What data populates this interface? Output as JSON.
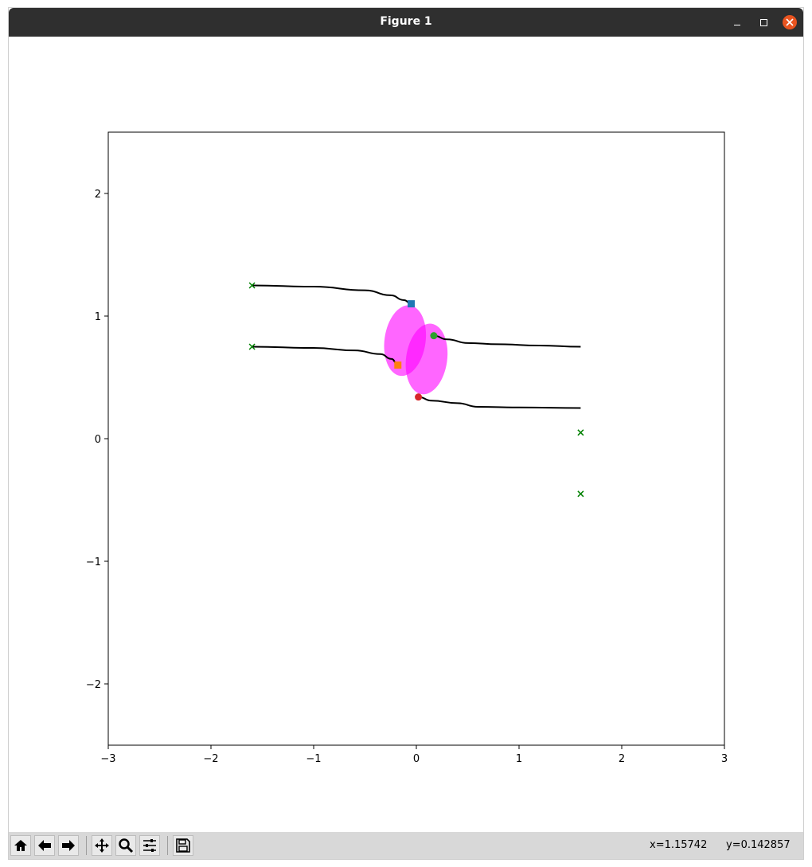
{
  "window": {
    "title": "Figure 1"
  },
  "status": {
    "x_readout": "x=1.15742",
    "y_readout": "y=0.142857"
  },
  "toolbar": {
    "buttons": [
      "home-icon",
      "back-arrow-icon",
      "forward-arrow-icon",
      "pan-icon",
      "zoom-icon",
      "configure-subplots-icon",
      "save-icon"
    ]
  },
  "colors": {
    "titlebar": "#2f2f2f",
    "close": "#e95420",
    "ellipse": "#ff00ff",
    "goal": "#008000",
    "path": "#000000"
  },
  "chart_data": {
    "type": "scatter",
    "title": "",
    "xlabel": "",
    "ylabel": "",
    "xlim": [
      -3,
      3
    ],
    "ylim": [
      -2.5,
      2.5
    ],
    "xticks": [
      -3,
      -2,
      -1,
      0,
      1,
      2,
      3
    ],
    "yticks": [
      -2,
      -1,
      0,
      1,
      2
    ],
    "xtick_labels": [
      "−3",
      "−2",
      "−1",
      "0",
      "1",
      "2",
      "3"
    ],
    "ytick_labels": [
      "−2",
      "−1",
      "0",
      "1",
      "2"
    ],
    "grid": false,
    "goals": [
      {
        "x": -1.6,
        "y": 1.25
      },
      {
        "x": -1.6,
        "y": 0.75
      },
      {
        "x": 1.6,
        "y": 0.05
      },
      {
        "x": 1.6,
        "y": -0.45
      }
    ],
    "trajectories": [
      {
        "points": [
          [
            -1.6,
            1.25
          ],
          [
            -1.0,
            1.24
          ],
          [
            -0.5,
            1.21
          ],
          [
            -0.25,
            1.17
          ],
          [
            -0.12,
            1.13
          ],
          [
            -0.05,
            1.1
          ]
        ]
      },
      {
        "points": [
          [
            -1.6,
            0.75
          ],
          [
            -1.0,
            0.74
          ],
          [
            -0.6,
            0.72
          ],
          [
            -0.35,
            0.69
          ],
          [
            -0.24,
            0.65
          ],
          [
            -0.18,
            0.6
          ]
        ]
      },
      {
        "points": [
          [
            0.17,
            0.84
          ],
          [
            0.3,
            0.81
          ],
          [
            0.5,
            0.78
          ],
          [
            0.8,
            0.77
          ],
          [
            1.2,
            0.76
          ],
          [
            1.6,
            0.75
          ]
        ]
      },
      {
        "points": [
          [
            0.02,
            0.34
          ],
          [
            0.15,
            0.31
          ],
          [
            0.4,
            0.29
          ],
          [
            0.6,
            0.26
          ],
          [
            1.0,
            0.255
          ],
          [
            1.6,
            0.25
          ]
        ]
      }
    ],
    "agents": [
      {
        "x": -0.05,
        "y": 1.1,
        "marker": "square",
        "color": "#1f77b4"
      },
      {
        "x": -0.18,
        "y": 0.6,
        "marker": "square",
        "color": "#ff7f0e"
      },
      {
        "x": 0.17,
        "y": 0.84,
        "marker": "circle",
        "color": "#2ca02c"
      },
      {
        "x": 0.02,
        "y": 0.34,
        "marker": "circle",
        "color": "#d62728"
      }
    ],
    "ellipses": [
      {
        "cx": -0.11,
        "cy": 0.8,
        "rx": 0.2,
        "ry": 0.29,
        "angle": 8,
        "color": "#ff00ff",
        "alpha": 0.6
      },
      {
        "cx": 0.1,
        "cy": 0.65,
        "rx": 0.2,
        "ry": 0.29,
        "angle": 8,
        "color": "#ff00ff",
        "alpha": 0.6
      }
    ]
  }
}
